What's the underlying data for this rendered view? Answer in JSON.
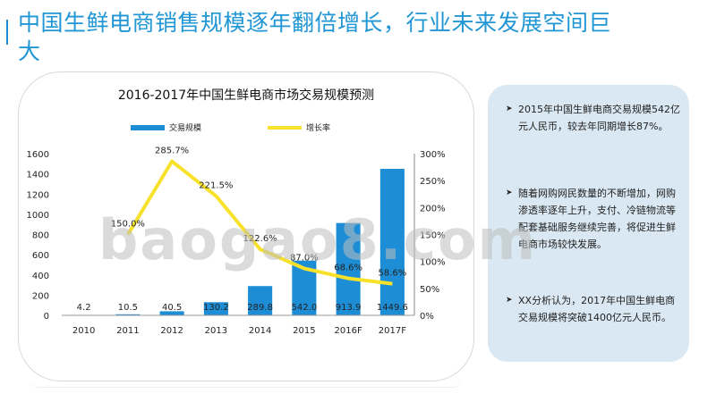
{
  "page": {
    "title": "中国生鲜电商销售规模逐年翻倍增长，行业未来发展空间巨大",
    "watermark": "baogao8.com"
  },
  "sidebar": {
    "bullets": [
      {
        "mark": "➤",
        "text": "2015年中国生鲜电商交易规模542亿元人民币，较去年同期增长87%。"
      },
      {
        "mark": "➤",
        "text": "随着网购网民数量的不断增加，网购渗透率逐年上升，支付、冷链物流等配套基础服务继续完善，将促进生鲜电商市场较快发展。"
      },
      {
        "mark": "➤",
        "text": "XX分析认为，2017年中国生鲜电商交易规模将突破1400亿元人民币。"
      }
    ]
  },
  "chart_data": {
    "type": "bar+line",
    "title": "2016-2017年中国生鲜电商市场交易规模预测",
    "categories": [
      "2010",
      "2011",
      "2012",
      "2013",
      "2014",
      "2015",
      "2016F",
      "2017F"
    ],
    "series": [
      {
        "name": "交易规模",
        "type": "bar",
        "axis": "left",
        "values": [
          4.2,
          10.5,
          40.5,
          130.2,
          289.8,
          542.0,
          913.9,
          1449.6
        ],
        "labels": [
          "4.2",
          "10.5",
          "40.5",
          "130.2",
          "289.8",
          "542.0",
          "913.9",
          "1449.6"
        ]
      },
      {
        "name": "增长率",
        "type": "line",
        "axis": "right",
        "values": [
          null,
          150.0,
          285.7,
          221.5,
          122.6,
          87.0,
          68.6,
          58.6
        ],
        "labels": [
          "",
          "150.0%",
          "285.7%",
          "221.5%",
          "122.6%",
          "87.0%",
          "68.6%",
          "58.6%"
        ]
      }
    ],
    "y_left": {
      "min": 0,
      "max": 1600,
      "ticks": [
        "0",
        "200",
        "400",
        "600",
        "800",
        "1000",
        "1200",
        "1400",
        "1600"
      ]
    },
    "y_right": {
      "min": 0,
      "max": 300,
      "ticks": [
        "0%",
        "50%",
        "100%",
        "150%",
        "200%",
        "250%",
        "300%"
      ]
    },
    "legend_position": "top",
    "grid": false,
    "colors": {
      "bar": "#1d8ed6",
      "line": "#f7e12b"
    }
  }
}
